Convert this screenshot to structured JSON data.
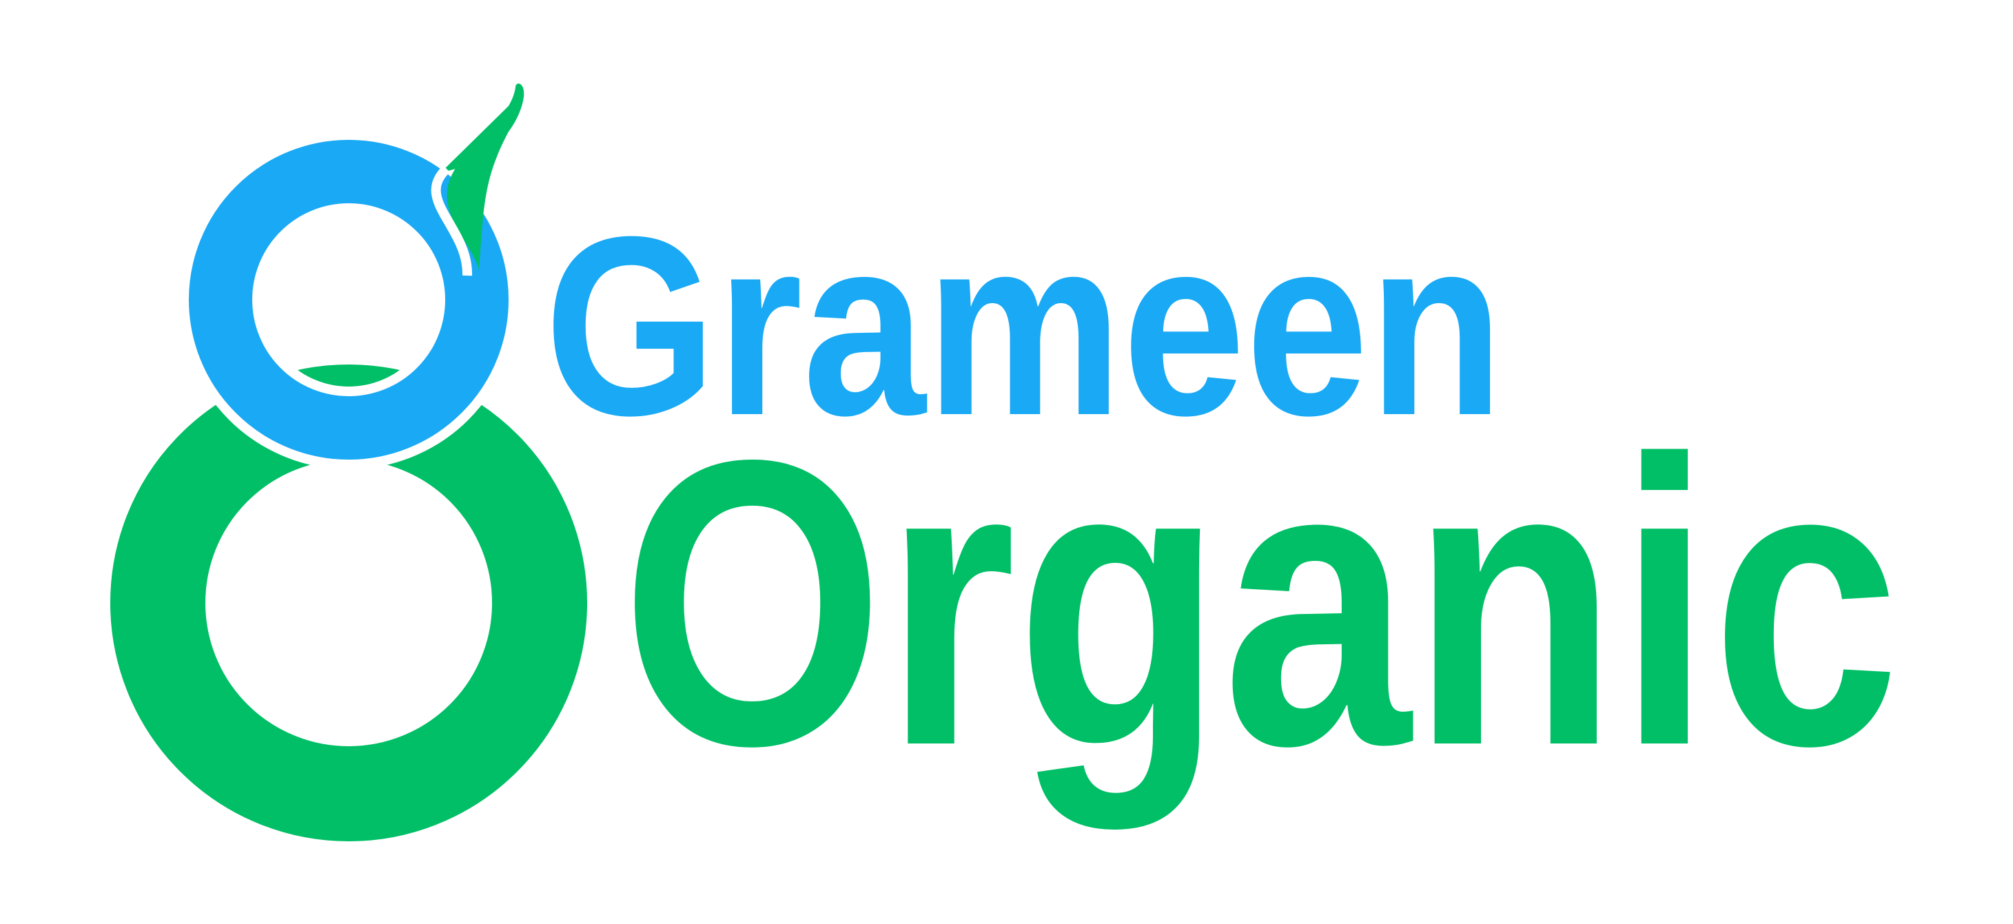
{
  "logo": {
    "line1": "Grameen",
    "line2": "Organic"
  }
}
